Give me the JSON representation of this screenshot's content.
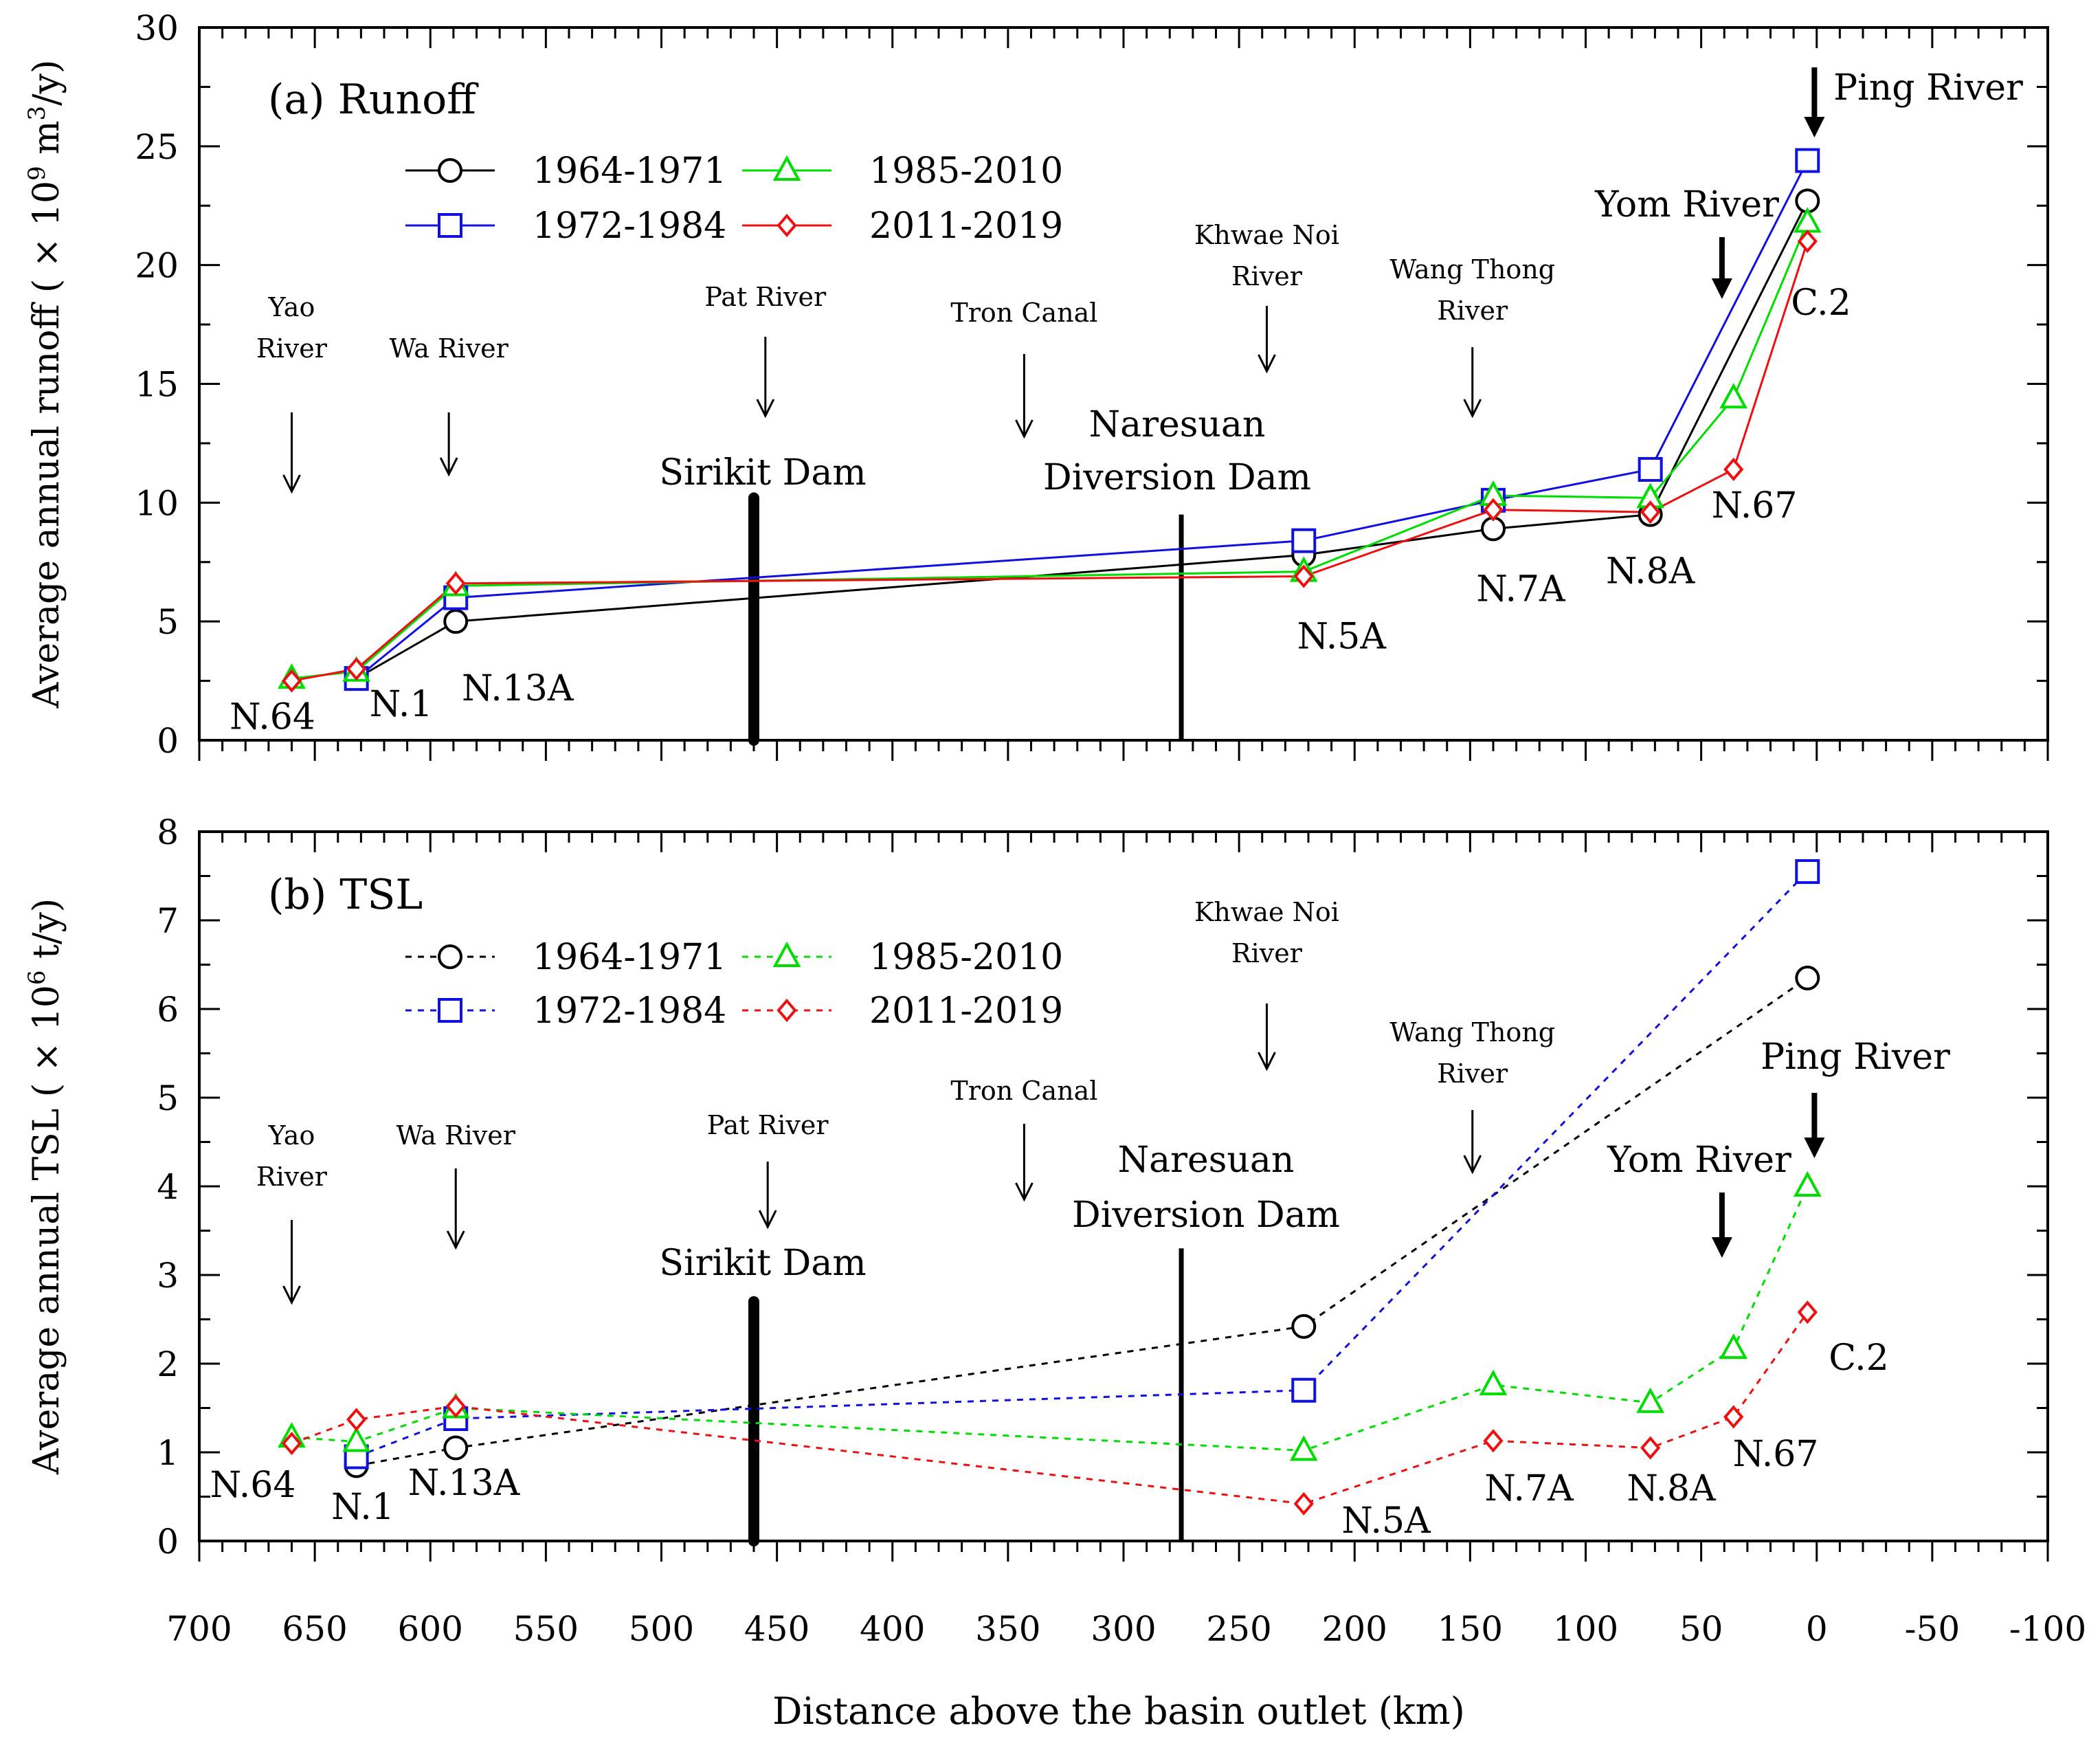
{
  "figure": {
    "xlabel": "Distance above the basin outlet (km)",
    "colors": {
      "1964-1971": "#000000",
      "1972-1984": "#1010e0",
      "1985-2010": "#00dd00",
      "2011-2019": "#ee1010"
    }
  },
  "chart_data": [
    {
      "type": "line",
      "panel": "a",
      "title": "(a) Runoff",
      "ylabel_main": "Average annual runoff ( × 10",
      "ylabel_exp": "9",
      "ylabel_mid": " m",
      "ylabel_exp2": "3",
      "ylabel_tail": "/y)",
      "line_style": "solid",
      "xlim": [
        700,
        -100
      ],
      "ylim": [
        0,
        30
      ],
      "xticks": [
        700,
        650,
        600,
        550,
        500,
        450,
        400,
        350,
        300,
        250,
        200,
        150,
        100,
        50,
        0,
        -50,
        -100
      ],
      "yticks": [
        0,
        5,
        10,
        15,
        20,
        25,
        30
      ],
      "x": [
        660,
        632,
        589,
        222,
        140,
        72,
        36,
        4
      ],
      "series": [
        {
          "name": "1964-1971",
          "marker": "circle",
          "values": [
            null,
            2.6,
            5.0,
            7.8,
            8.9,
            9.5,
            null,
            22.7
          ]
        },
        {
          "name": "1972-1984",
          "marker": "square",
          "values": [
            null,
            2.6,
            6.0,
            8.4,
            10.1,
            11.4,
            null,
            24.4
          ]
        },
        {
          "name": "1985-2010",
          "marker": "triangle",
          "values": [
            2.6,
            2.9,
            6.5,
            7.1,
            10.3,
            10.2,
            14.4,
            21.8
          ]
        },
        {
          "name": "2011-2019",
          "marker": "diamond",
          "values": [
            2.5,
            3.0,
            6.6,
            6.9,
            9.7,
            9.6,
            11.4,
            21.0
          ]
        }
      ],
      "station_labels": [
        "N.64",
        "N.1",
        "N.13A",
        "N.5A",
        "N.7A",
        "N.8A",
        "N.67",
        "C.2"
      ],
      "dams": [
        {
          "name": "Sirikit Dam",
          "x": 460,
          "top": 10.2,
          "weight": "thick"
        },
        {
          "name": "Naresuan Diversion Dam",
          "line1": "Naresuan",
          "line2": "Diversion Dam",
          "x": 275,
          "top": 9.5,
          "weight": "thin"
        }
      ],
      "tributaries": [
        {
          "name": "Yao River",
          "line1": "Yao",
          "line2": "River",
          "x": 660
        },
        {
          "name": "Wa River",
          "line1": "Wa River",
          "line2": "",
          "x": 592
        },
        {
          "name": "Pat River",
          "line1": "Pat River",
          "line2": "",
          "x": 455
        },
        {
          "name": "Tron Canal",
          "line1": "Tron Canal",
          "line2": "",
          "x": 343
        },
        {
          "name": "Khwae Noi River",
          "line1": "Khwae Noi",
          "line2": "River",
          "x": 238
        },
        {
          "name": "Wang Thong River",
          "line1": "Wang Thong",
          "line2": "River",
          "x": 149
        },
        {
          "name": "Yom River",
          "line1": "Yom River",
          "line2": "",
          "x": 41
        },
        {
          "name": "Ping River",
          "line1": "Ping River",
          "line2": "",
          "x": 1
        }
      ]
    },
    {
      "type": "line",
      "panel": "b",
      "title": "(b) TSL",
      "ylabel_main": "Average annual TSL ( × 10",
      "ylabel_exp": "6",
      "ylabel_mid": " t/y)",
      "ylabel_exp2": "",
      "ylabel_tail": "",
      "line_style": "dashed",
      "xlim": [
        700,
        -100
      ],
      "ylim": [
        0,
        8
      ],
      "xticks": [
        700,
        650,
        600,
        550,
        500,
        450,
        400,
        350,
        300,
        250,
        200,
        150,
        100,
        50,
        0,
        -50,
        -100
      ],
      "yticks": [
        0,
        1,
        2,
        3,
        4,
        5,
        6,
        7,
        8
      ],
      "x": [
        660,
        632,
        589,
        222,
        140,
        72,
        36,
        4
      ],
      "series": [
        {
          "name": "1964-1971",
          "marker": "circle",
          "values": [
            null,
            0.85,
            1.05,
            2.42,
            null,
            null,
            null,
            6.35
          ]
        },
        {
          "name": "1972-1984",
          "marker": "square",
          "values": [
            null,
            0.95,
            1.38,
            1.7,
            null,
            null,
            null,
            7.55
          ]
        },
        {
          "name": "1985-2010",
          "marker": "triangle",
          "values": [
            1.17,
            1.12,
            1.5,
            1.02,
            1.76,
            1.56,
            2.17,
            4.0
          ]
        },
        {
          "name": "2011-2019",
          "marker": "diamond",
          "values": [
            1.1,
            1.37,
            1.52,
            0.42,
            1.13,
            1.05,
            1.4,
            2.58
          ]
        }
      ],
      "station_labels": [
        "N.64",
        "N.1",
        "N.13A",
        "N.5A",
        "N.7A",
        "N.8A",
        "N.67",
        "C.2"
      ],
      "dams": [
        {
          "name": "Sirikit Dam",
          "x": 460,
          "top": 2.7,
          "weight": "thick"
        },
        {
          "name": "Naresuan Diversion Dam",
          "line1": "Naresuan",
          "line2": "Diversion Dam",
          "x": 275,
          "top": 3.3,
          "weight": "thin"
        }
      ],
      "tributaries": [
        {
          "name": "Yao River",
          "line1": "Yao",
          "line2": "River",
          "x": 660
        },
        {
          "name": "Wa River",
          "line1": "Wa River",
          "line2": "",
          "x": 589
        },
        {
          "name": "Pat River",
          "line1": "Pat River",
          "line2": "",
          "x": 454
        },
        {
          "name": "Tron Canal",
          "line1": "Tron Canal",
          "line2": "",
          "x": 343
        },
        {
          "name": "Khwae Noi River",
          "line1": "Khwae Noi",
          "line2": "River",
          "x": 238
        },
        {
          "name": "Wang Thong River",
          "line1": "Wang Thong",
          "line2": "River",
          "x": 149
        },
        {
          "name": "Yom River",
          "line1": "Yom River",
          "line2": "",
          "x": 41
        },
        {
          "name": "Ping River",
          "line1": "Ping River",
          "line2": "",
          "x": 1
        }
      ]
    }
  ]
}
